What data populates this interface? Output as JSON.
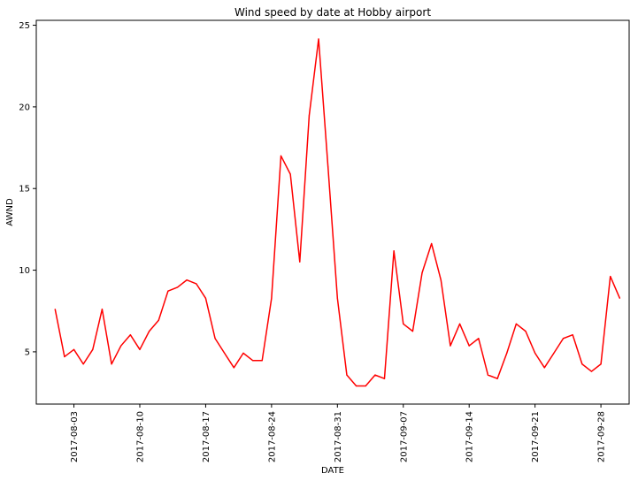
{
  "chart_data": {
    "type": "line",
    "title": "Wind speed by date at Hobby airport",
    "xlabel": "DATE",
    "ylabel": "AWND",
    "x_start": "2017-08-01",
    "x_end": "2017-09-30",
    "xlim": [
      "2017-07-30",
      "2017-10-01"
    ],
    "ylim": [
      1.8,
      25.3
    ],
    "x_ticks": [
      "2017-08-03",
      "2017-08-10",
      "2017-08-17",
      "2017-08-24",
      "2017-08-31",
      "2017-09-07",
      "2017-09-14",
      "2017-09-21",
      "2017-09-28"
    ],
    "y_ticks": [
      5,
      10,
      15,
      20,
      25
    ],
    "grid": false,
    "series": [
      {
        "color": "#ff0000",
        "values": [
          7.61,
          4.7,
          5.14,
          4.25,
          5.14,
          7.61,
          4.25,
          5.37,
          6.04,
          5.14,
          6.26,
          6.93,
          8.72,
          8.95,
          9.4,
          9.17,
          8.28,
          5.82,
          4.92,
          4.03,
          4.92,
          4.47,
          4.47,
          8.28,
          17.0,
          15.88,
          10.51,
          19.46,
          24.16,
          16.33,
          8.28,
          3.58,
          2.91,
          2.91,
          3.58,
          3.36,
          11.18,
          6.71,
          6.26,
          9.84,
          11.63,
          9.4,
          5.37,
          6.71,
          5.37,
          5.82,
          3.58,
          3.36,
          4.92,
          6.71,
          6.26,
          4.92,
          4.03,
          4.92,
          5.82,
          6.04,
          4.25,
          3.8,
          4.25,
          9.62,
          8.28
        ]
      }
    ]
  }
}
